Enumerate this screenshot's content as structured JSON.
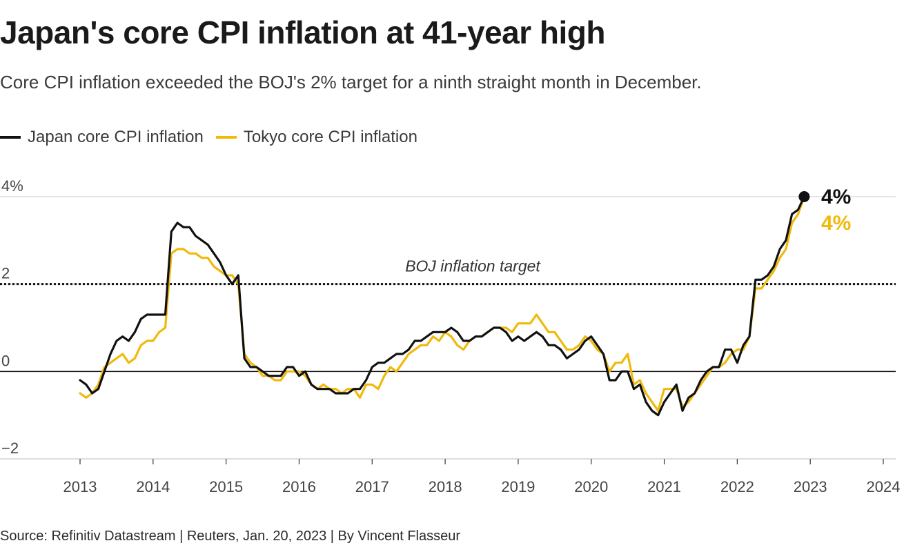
{
  "header": {
    "title": "Japan's core CPI inflation at 41-year high",
    "subtitle": "Core CPI inflation exceeded the BOJ's 2% target for a ninth straight month in December."
  },
  "legend": [
    {
      "label": "Japan core CPI inflation",
      "color": "#111111"
    },
    {
      "label": "Tokyo core CPI inflation",
      "color": "#f0b90b"
    }
  ],
  "footer": {
    "source": "Source: Refinitiv Datastream | Reuters, Jan. 20, 2023 | By Vincent Flasseur"
  },
  "chart_data": {
    "type": "line",
    "ylim": [
      -2,
      4
    ],
    "xlim": [
      2013,
      2024
    ],
    "y_tick_labels": [
      "4%",
      "2",
      "0",
      "−2"
    ],
    "y_tick_values": [
      4,
      2,
      0,
      -2
    ],
    "x_ticks": [
      2013,
      2014,
      2015,
      2016,
      2017,
      2018,
      2019,
      2020,
      2021,
      2022,
      2023,
      2024
    ],
    "grid": "horizontal",
    "reference_line": {
      "value": 2,
      "label": "BOJ inflation target",
      "style": "dotted"
    },
    "end_labels": [
      {
        "series": "Japan core CPI inflation",
        "text": "4%"
      },
      {
        "series": "Tokyo core CPI inflation",
        "text": "4%"
      }
    ],
    "x_start": "2013-01",
    "series": [
      {
        "name": "Japan core CPI inflation",
        "color": "#111111",
        "values": [
          -0.2,
          -0.3,
          -0.5,
          -0.4,
          0.0,
          0.4,
          0.7,
          0.8,
          0.7,
          0.9,
          1.2,
          1.3,
          1.3,
          1.3,
          1.3,
          3.2,
          3.4,
          3.3,
          3.3,
          3.1,
          3.0,
          2.9,
          2.7,
          2.5,
          2.2,
          2.0,
          2.2,
          0.3,
          0.1,
          0.1,
          0.0,
          -0.1,
          -0.1,
          -0.1,
          0.1,
          0.1,
          -0.1,
          0.0,
          -0.3,
          -0.4,
          -0.4,
          -0.4,
          -0.5,
          -0.5,
          -0.5,
          -0.4,
          -0.4,
          -0.2,
          0.1,
          0.2,
          0.2,
          0.3,
          0.4,
          0.4,
          0.5,
          0.7,
          0.7,
          0.8,
          0.9,
          0.9,
          0.9,
          1.0,
          0.9,
          0.7,
          0.7,
          0.8,
          0.8,
          0.9,
          1.0,
          1.0,
          0.9,
          0.7,
          0.8,
          0.7,
          0.8,
          0.9,
          0.8,
          0.6,
          0.6,
          0.5,
          0.3,
          0.4,
          0.5,
          0.7,
          0.8,
          0.6,
          0.4,
          -0.2,
          -0.2,
          0.0,
          0.0,
          -0.4,
          -0.3,
          -0.7,
          -0.9,
          -1.0,
          -0.7,
          -0.5,
          -0.3,
          -0.9,
          -0.6,
          -0.5,
          -0.2,
          0.0,
          0.1,
          0.1,
          0.5,
          0.5,
          0.2,
          0.6,
          0.8,
          2.1,
          2.1,
          2.2,
          2.4,
          2.8,
          3.0,
          3.6,
          3.7,
          4.0
        ]
      },
      {
        "name": "Tokyo core CPI inflation",
        "color": "#f0b90b",
        "values": [
          -0.5,
          -0.6,
          -0.5,
          -0.3,
          0.1,
          0.2,
          0.3,
          0.4,
          0.2,
          0.3,
          0.6,
          0.7,
          0.7,
          0.9,
          1.0,
          2.7,
          2.8,
          2.8,
          2.7,
          2.7,
          2.6,
          2.6,
          2.4,
          2.3,
          2.2,
          2.2,
          2.0,
          0.4,
          0.2,
          0.1,
          -0.1,
          -0.1,
          -0.2,
          -0.2,
          0.0,
          0.0,
          0.0,
          -0.1,
          -0.3,
          -0.4,
          -0.3,
          -0.4,
          -0.4,
          -0.5,
          -0.4,
          -0.4,
          -0.6,
          -0.3,
          -0.3,
          -0.4,
          -0.1,
          0.1,
          0.0,
          0.2,
          0.4,
          0.5,
          0.6,
          0.6,
          0.8,
          0.7,
          0.9,
          0.8,
          0.6,
          0.5,
          0.7,
          0.8,
          0.8,
          0.9,
          1.0,
          1.0,
          1.0,
          0.9,
          1.1,
          1.1,
          1.1,
          1.3,
          1.1,
          0.9,
          0.9,
          0.7,
          0.5,
          0.5,
          0.6,
          0.8,
          0.7,
          0.5,
          0.4,
          0.0,
          0.2,
          0.2,
          0.4,
          -0.3,
          -0.2,
          -0.5,
          -0.7,
          -0.9,
          -0.4,
          -0.4,
          -0.4,
          -0.8,
          -0.7,
          -0.5,
          -0.3,
          -0.1,
          0.1,
          0.1,
          0.2,
          0.4,
          0.5,
          0.5,
          0.8,
          1.9,
          1.9,
          2.1,
          2.3,
          2.6,
          2.8,
          3.4,
          3.6,
          4.0
        ]
      }
    ]
  }
}
